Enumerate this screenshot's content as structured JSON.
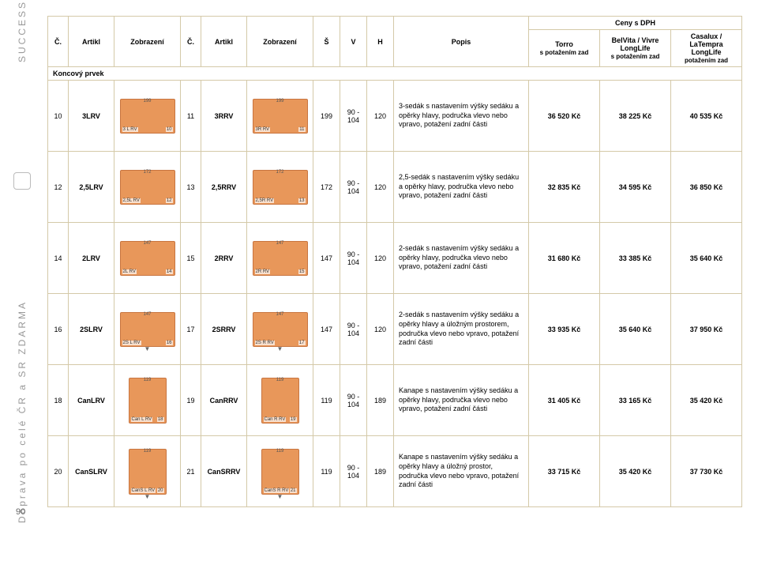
{
  "pageNumber": "90",
  "sideTop": "SUCCESS",
  "sideBottom": "Doprava po celé ČR a SR  ZDARMA",
  "header": {
    "c": "Č.",
    "artikl": "Artikl",
    "zobrazeni": "Zobrazení",
    "s": "Š",
    "v": "V",
    "h": "H",
    "popis": "Popis",
    "ceny": "Ceny s DPH",
    "torro": "Torro",
    "torroSub": "s potažením zad",
    "belvita": "BelVita / Vivre LongLife",
    "belvitaSub": "s potažením zad",
    "casalux": "Casalux / LaTempra LongLife",
    "casaluxSub": "potažením zad",
    "koncovy": "Koncový prvek"
  },
  "rows": [
    {
      "c1": "10",
      "a1": "3LRV",
      "t1": {
        "lbl": "3 L RV",
        "num": "10",
        "dim": "199"
      },
      "c2": "11",
      "a2": "3RRV",
      "t2": {
        "lbl": "3R RV",
        "num": "11",
        "dim": "199"
      },
      "s": "199",
      "v": "90 - 104",
      "h": "120",
      "popis": "3-sedák s nastavením výšky sedáku a opěrky hlavy, područka vlevo nebo vpravo, potažení zadní části",
      "p1": "36 520 Kč",
      "p2": "38 225 Kč",
      "p3": "40 535 Kč",
      "tall": false,
      "arrow": false
    },
    {
      "c1": "12",
      "a1": "2,5LRV",
      "t1": {
        "lbl": "2,5L RV",
        "num": "12",
        "dim": "172"
      },
      "c2": "13",
      "a2": "2,5RRV",
      "t2": {
        "lbl": "2,5R RV",
        "num": "13",
        "dim": "172"
      },
      "s": "172",
      "v": "90 - 104",
      "h": "120",
      "popis": "2,5-sedák s nastavením výšky sedáku a opěrky hlavy, područka vlevo nebo vpravo, potažení zadní části",
      "p1": "32 835 Kč",
      "p2": "34 595 Kč",
      "p3": "36 850 Kč",
      "tall": false,
      "arrow": false
    },
    {
      "c1": "14",
      "a1": "2LRV",
      "t1": {
        "lbl": "2L RV",
        "num": "14",
        "dim": "147"
      },
      "c2": "15",
      "a2": "2RRV",
      "t2": {
        "lbl": "2R RV",
        "num": "15",
        "dim": "147"
      },
      "s": "147",
      "v": "90 - 104",
      "h": "120",
      "popis": "2-sedák s nastavením výšky sedáku a opěrky hlavy, područka vlevo nebo vpravo, potažení zadní části",
      "p1": "31 680 Kč",
      "p2": "33 385 Kč",
      "p3": "35 640 Kč",
      "tall": false,
      "arrow": false
    },
    {
      "c1": "16",
      "a1": "2SLRV",
      "t1": {
        "lbl": "2S L RV",
        "num": "16",
        "dim": "147"
      },
      "c2": "17",
      "a2": "2SRRV",
      "t2": {
        "lbl": "2S R RV",
        "num": "17",
        "dim": "147"
      },
      "s": "147",
      "v": "90 - 104",
      "h": "120",
      "popis": "2-sedák s nastavením výšky sedáku a opěrky hlavy a úložným prostorem, područka vlevo nebo vpravo, potažení zadní části",
      "p1": "33 935 Kč",
      "p2": "35 640 Kč",
      "p3": "37 950 Kč",
      "tall": false,
      "arrow": true
    },
    {
      "c1": "18",
      "a1": "CanLRV",
      "t1": {
        "lbl": "Can L RV",
        "num": "18",
        "dim": "119"
      },
      "c2": "19",
      "a2": "CanRRV",
      "t2": {
        "lbl": "Can R RV",
        "num": "19",
        "dim": "119"
      },
      "s": "119",
      "v": "90 - 104",
      "h": "189",
      "popis": "Kanape s nastavením výšky sedáku a opěrky hlavy, područka vlevo nebo vpravo, potažení zadní části",
      "p1": "31 405 Kč",
      "p2": "33 165 Kč",
      "p3": "35 420 Kč",
      "tall": true,
      "arrow": false
    },
    {
      "c1": "20",
      "a1": "CanSLRV",
      "t1": {
        "lbl": "CanS L RV",
        "num": "20",
        "dim": "119"
      },
      "c2": "21",
      "a2": "CanSRRV",
      "t2": {
        "lbl": "CanS R RV",
        "num": "21",
        "dim": "119"
      },
      "s": "119",
      "v": "90 - 104",
      "h": "189",
      "popis": "Kanape s nastavením výšky sedáku a opěrky hlavy a úložný prostor, područka vlevo nebo vpravo, potažení zadní části",
      "p1": "33 715 Kč",
      "p2": "35 420 Kč",
      "p3": "37 730 Kč",
      "tall": true,
      "arrow": true
    }
  ]
}
